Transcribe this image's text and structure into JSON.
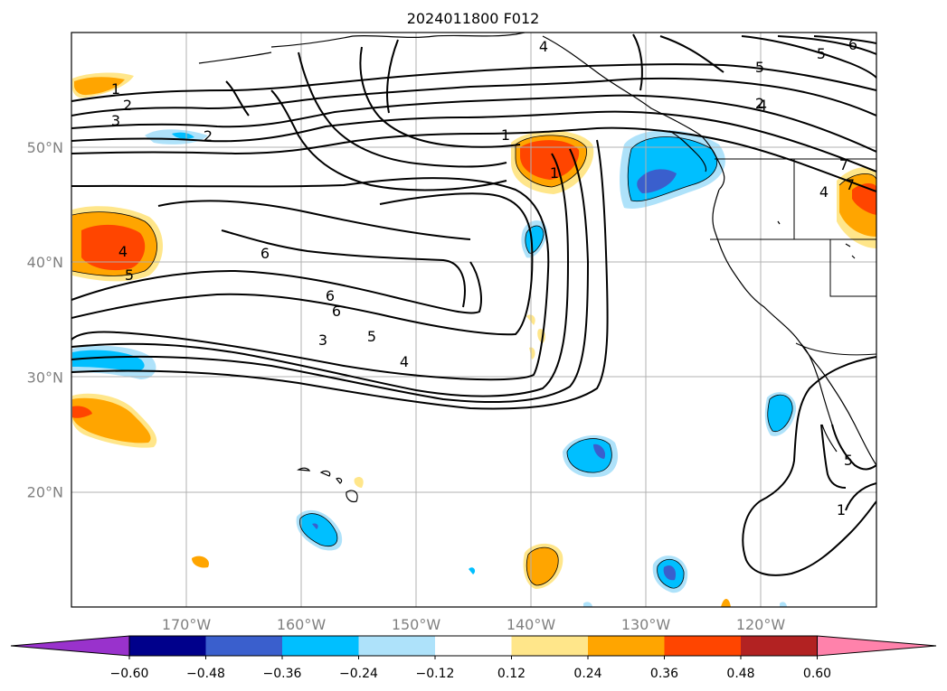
{
  "title": "2024011800 F012",
  "map": {
    "lat_ticks": [
      {
        "value": 50,
        "label": "50°N"
      },
      {
        "value": 40,
        "label": "40°N"
      },
      {
        "value": 30,
        "label": "30°N"
      },
      {
        "value": 20,
        "label": "20°N"
      }
    ],
    "lon_ticks": [
      {
        "value": -170,
        "label": "170°W"
      },
      {
        "value": -160,
        "label": "160°W"
      },
      {
        "value": -150,
        "label": "150°W"
      },
      {
        "value": -140,
        "label": "140°W"
      },
      {
        "value": -130,
        "label": "130°W"
      },
      {
        "value": -120,
        "label": "120°W"
      }
    ],
    "gridlines": true,
    "contour_labels": [
      "1",
      "2",
      "3",
      "4",
      "5",
      "6",
      "6",
      "6",
      "5",
      "4",
      "3",
      "2",
      "1",
      "4",
      "5",
      "4",
      "5",
      "6",
      "7",
      "4",
      "5",
      "1",
      "2",
      "1",
      "7"
    ]
  },
  "colorbar": {
    "tick_labels": [
      "−0.60",
      "−0.48",
      "−0.36",
      "−0.24",
      "−0.12",
      "0.12",
      "0.24",
      "0.36",
      "0.48",
      "0.60"
    ],
    "colors": [
      "#9932cc",
      "#00008b",
      "#3a5fcd",
      "#00bfff",
      "#aee2fa",
      "#ffffff",
      "#ffe68a",
      "#ffa500",
      "#ff4500",
      "#b22222",
      "#ff82ab"
    ]
  }
}
